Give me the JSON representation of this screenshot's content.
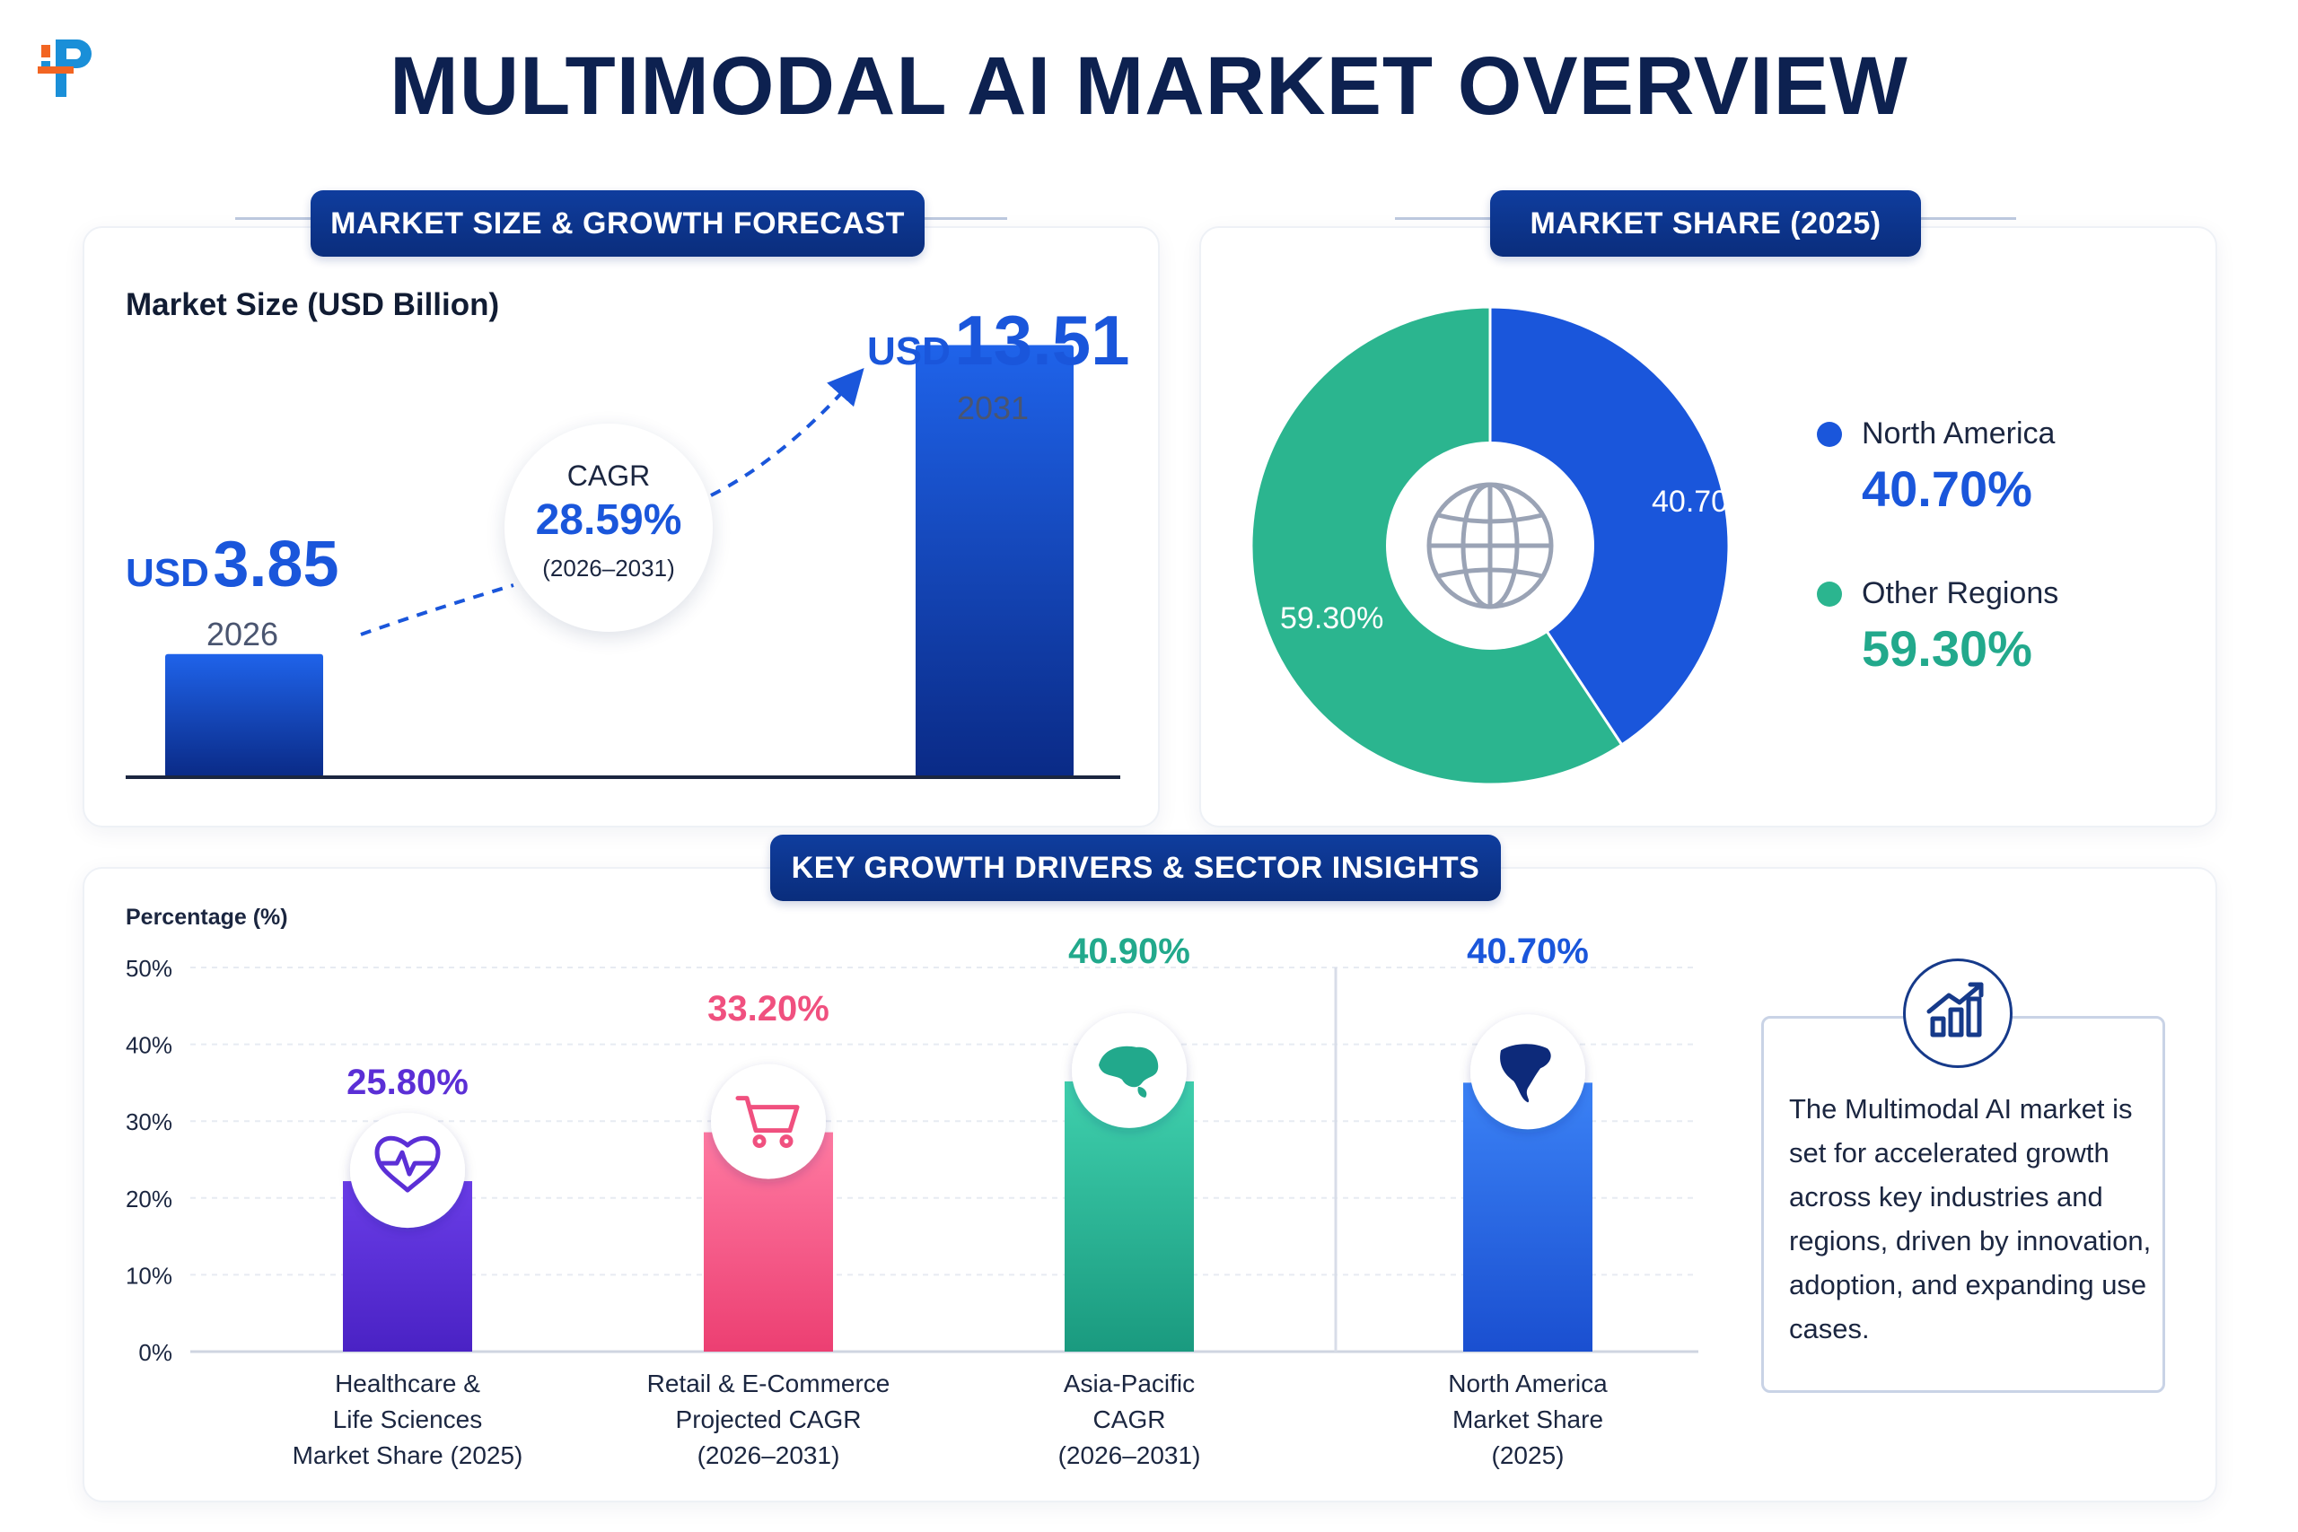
{
  "title": "MULTIMODAL AI MARKET OVERVIEW",
  "sections": {
    "market_size": "MARKET SIZE & GROWTH FORECAST",
    "market_share": "MARKET SHARE (2025)",
    "drivers": "KEY GROWTH DRIVERS & SECTOR INSIGHTS"
  },
  "description": "The Multimodal AI market is set for accelerated growth across key industries and regions, driven by innovation, adoption, and expanding use cases.",
  "colors": {
    "navy": "#0d2150",
    "blue": "#1a56db",
    "green": "#2bb58f",
    "purple": "#5b2fd6",
    "pink": "#f0507f",
    "teal": "#22a98c"
  },
  "icons": {
    "globe": "globe-icon",
    "heart": "heart-pulse-icon",
    "cart": "shopping-cart-icon",
    "asia": "asia-map-icon",
    "north_america": "north-america-map-icon",
    "growth": "growth-chart-icon"
  },
  "chart_data": [
    {
      "type": "bar",
      "title": "Market Size (USD Billion)",
      "categories": [
        "2026",
        "2031"
      ],
      "values": [
        3.85,
        13.51
      ],
      "value_labels": [
        {
          "prefix": "USD",
          "value": "3.85"
        },
        {
          "prefix": "USD",
          "value": "13.51"
        }
      ],
      "annotation": {
        "label": "CAGR",
        "value": "28.59%",
        "period": "(2026–2031)"
      },
      "ylim": [
        0,
        15
      ]
    },
    {
      "type": "pie",
      "title": "",
      "labels": [
        "North America",
        "Other Regions"
      ],
      "values": [
        40.7,
        59.3
      ],
      "display": [
        "40.70%",
        "59.30%"
      ],
      "colors": [
        "#1a56db",
        "#2bb58f"
      ],
      "legend": "right"
    },
    {
      "type": "bar",
      "ylabel": "Percentage (%)",
      "ylim": [
        0,
        50
      ],
      "yticks": [
        "0%",
        "10%",
        "20%",
        "30%",
        "40%",
        "50%"
      ],
      "categories": [
        [
          "Healthcare &",
          "Life Sciences",
          "Market Share (2025)"
        ],
        [
          "Retail & E-Commerce",
          "Projected CAGR",
          "(2026–2031)"
        ],
        [
          "Asia-Pacific",
          "CAGR",
          "(2026–2031)"
        ],
        [
          "North America",
          "Market Share",
          "(2025)"
        ]
      ],
      "values": [
        25.8,
        33.2,
        40.9,
        40.7
      ],
      "display": [
        "25.80%",
        "33.20%",
        "40.90%",
        "40.70%"
      ],
      "colors": [
        "#5b2fd6",
        "#f0507f",
        "#22a98c",
        "#1a56db"
      ],
      "grid": true
    }
  ]
}
